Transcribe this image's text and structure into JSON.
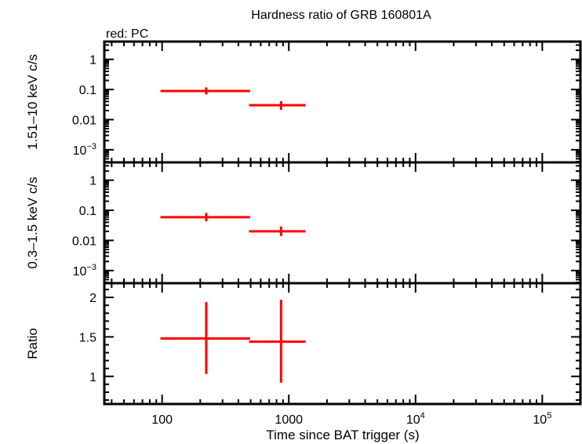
{
  "chart_data": {
    "title": "Hardness ratio of GRB 160801A",
    "subtitle": "red: PC",
    "xlabel": "Time since BAT trigger (s)",
    "xscale": "log",
    "xlim": [
      35,
      200000
    ],
    "xticks": [
      {
        "value": 100,
        "label": "100"
      },
      {
        "value": 1000,
        "label": "1000"
      },
      {
        "value": 10000,
        "base": "10",
        "exp": "4"
      },
      {
        "value": 100000,
        "base": "10",
        "exp": "5"
      }
    ],
    "color": "#ff0000",
    "panels": [
      {
        "type": "scatter",
        "ylabel": "1.51–10 keV c/s",
        "yscale": "log",
        "ylim": [
          0.00038,
          3.9
        ],
        "yticks": [
          {
            "value": 1,
            "label": "1"
          },
          {
            "value": 0.1,
            "label": "0.1"
          },
          {
            "value": 0.01,
            "label": "0.01"
          },
          {
            "value": 0.001,
            "base": "10",
            "exp": "−3"
          }
        ],
        "points": [
          {
            "x": 223,
            "xlo": 97,
            "xhi": 495,
            "y": 0.089,
            "ylo": 0.068,
            "yhi": 0.117
          },
          {
            "x": 868,
            "xlo": 485,
            "xhi": 1355,
            "y": 0.03,
            "ylo": 0.021,
            "yhi": 0.041
          }
        ]
      },
      {
        "type": "scatter",
        "ylabel": "0.3–1.5 keV c/s",
        "yscale": "log",
        "ylim": [
          0.00038,
          3.9
        ],
        "yticks": [
          {
            "value": 1,
            "label": "1"
          },
          {
            "value": 0.1,
            "label": "0.1"
          },
          {
            "value": 0.01,
            "label": "0.01"
          },
          {
            "value": 0.001,
            "base": "10",
            "exp": "−3"
          }
        ],
        "points": [
          {
            "x": 223,
            "xlo": 97,
            "xhi": 495,
            "y": 0.059,
            "ylo": 0.043,
            "yhi": 0.082
          },
          {
            "x": 868,
            "xlo": 485,
            "xhi": 1355,
            "y": 0.02,
            "ylo": 0.014,
            "yhi": 0.029
          }
        ]
      },
      {
        "type": "scatter",
        "ylabel": "Ratio",
        "yscale": "linear",
        "ylim": [
          0.65,
          2.18
        ],
        "yticks": [
          {
            "value": 2,
            "label": "2"
          },
          {
            "value": 1.5,
            "label": "1.5"
          },
          {
            "value": 1,
            "label": "1"
          }
        ],
        "yminor": 0.1,
        "points": [
          {
            "x": 223,
            "xlo": 97,
            "xhi": 495,
            "y": 1.48,
            "ylo": 1.03,
            "yhi": 1.94
          },
          {
            "x": 868,
            "xlo": 485,
            "xhi": 1355,
            "y": 1.44,
            "ylo": 0.92,
            "yhi": 1.97
          }
        ]
      }
    ]
  }
}
